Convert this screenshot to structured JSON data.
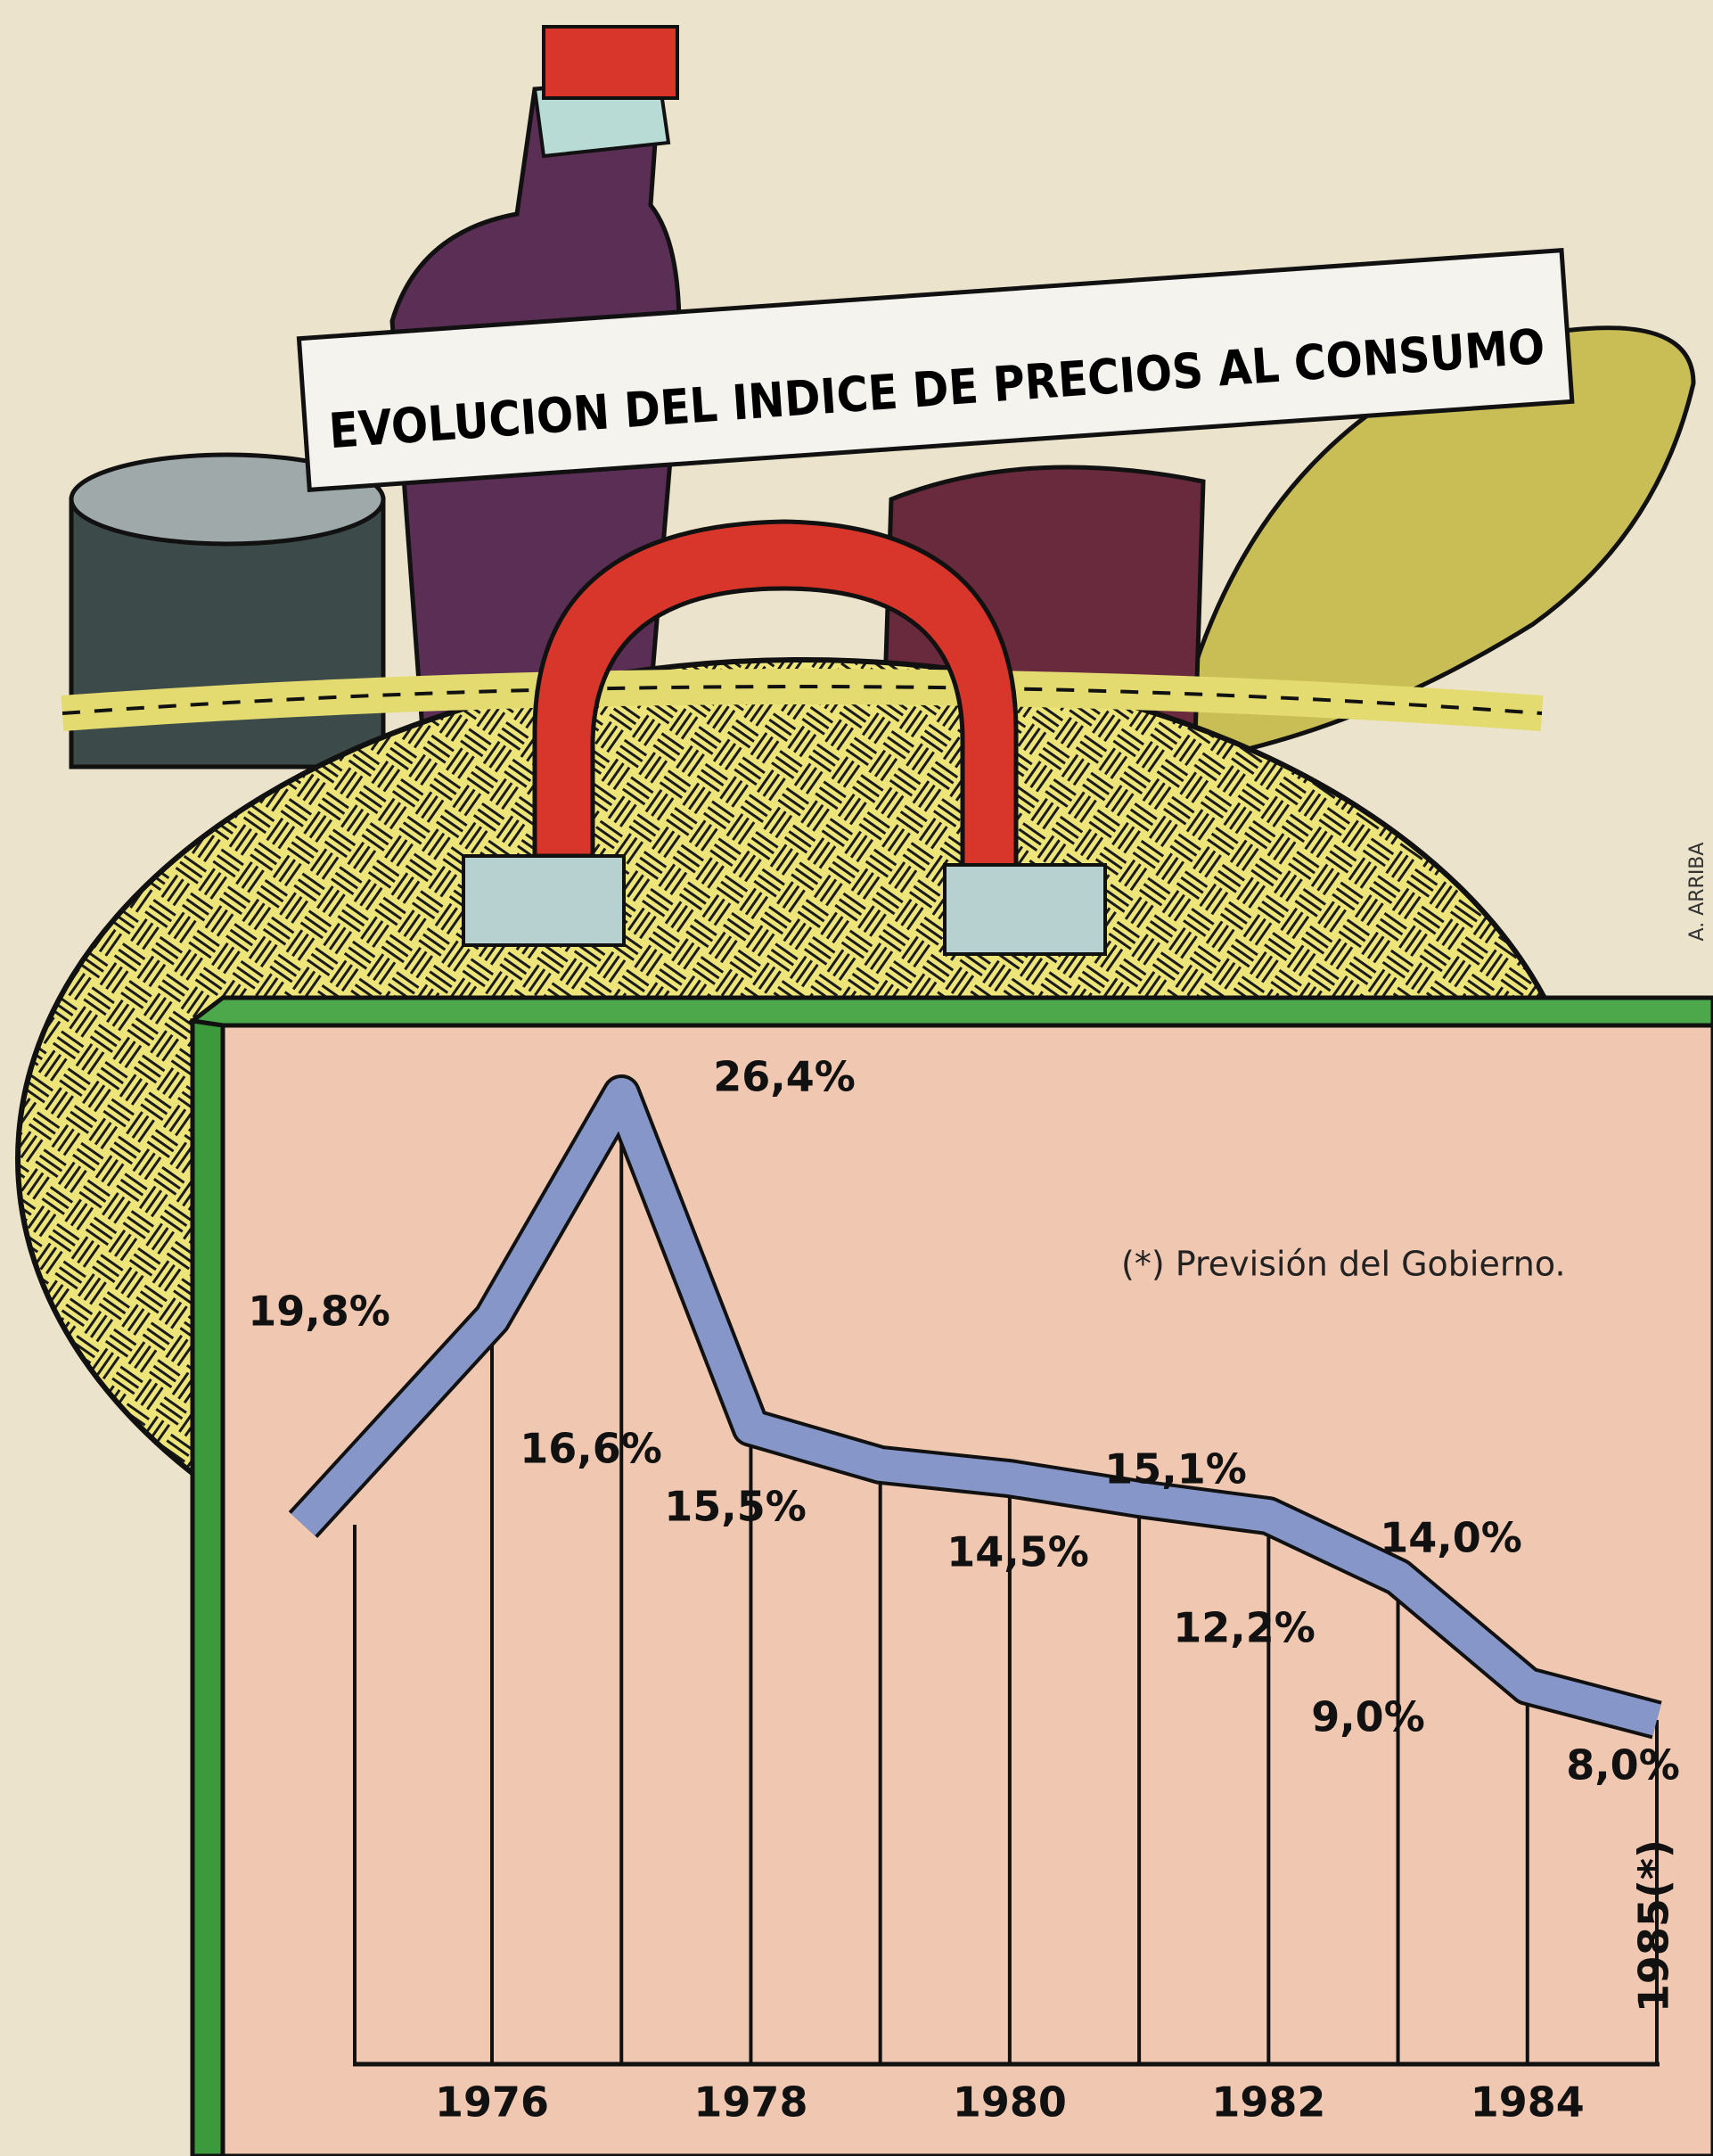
{
  "chart_data": {
    "type": "line",
    "title": "EVOLUCION DEL INDICE DE PRECIOS AL CONSUMO",
    "note": "(*)   Previsión del Gobierno.",
    "credit": "A. ARRIBA",
    "categories": [
      "1976",
      null,
      "1978",
      null,
      "1980",
      null,
      "1982",
      null,
      "1984",
      "1985(*)"
    ],
    "series": [
      {
        "color": "#8696c8",
        "values": [
          19.8,
          26.4,
          16.6,
          15.5,
          15.1,
          14.5,
          14.0,
          12.2,
          9.0,
          8.0
        ],
        "value_labels": [
          "19,8%",
          "26,4%",
          "16,6%",
          "15,5%",
          "15,1%",
          "14,5%",
          "14,0%",
          "12,2%",
          "9,0%",
          "8,0%"
        ]
      }
    ]
  }
}
